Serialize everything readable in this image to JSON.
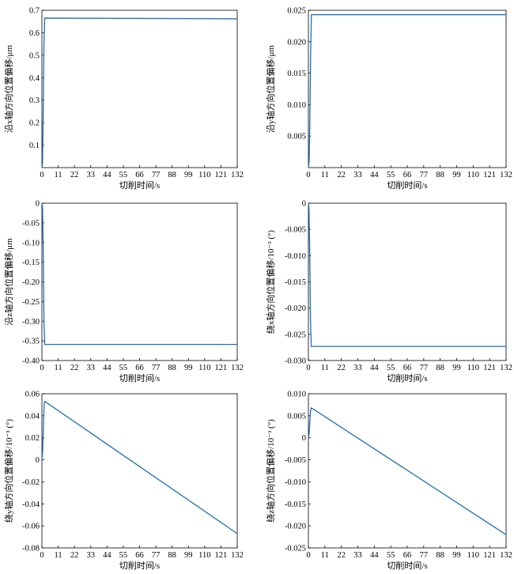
{
  "colors": {
    "line": "#1f6fb2",
    "axes": "#000000",
    "background": "#ffffff"
  },
  "chart_data": [
    {
      "type": "line",
      "xlabel": "切削时间/s",
      "ylabel": "沿x轴方向位置偏移/μm",
      "xlim": [
        0,
        132
      ],
      "ylim": [
        0,
        0.7
      ],
      "xticks": [
        0,
        11,
        22,
        33,
        44,
        55,
        66,
        77,
        88,
        99,
        110,
        121,
        132
      ],
      "yticks": [
        0.1,
        0.2,
        0.3,
        0.4,
        0.5,
        0.6,
        0.7
      ],
      "ytick_labels": [
        "0.1",
        "0.2",
        "0.3",
        "0.4",
        "0.5",
        "0.6",
        "0.7"
      ],
      "grid": false,
      "series": [
        {
          "x": [
            0,
            0.4,
            0.9,
            1.4,
            1.9,
            132
          ],
          "y": [
            0,
            0.02,
            0.25,
            0.55,
            0.665,
            0.662
          ]
        }
      ]
    },
    {
      "type": "line",
      "xlabel": "切削时间/s",
      "ylabel": "沿y轴方向位置偏移/μm",
      "xlim": [
        0,
        132
      ],
      "ylim": [
        0,
        0.025
      ],
      "xticks": [
        0,
        11,
        22,
        33,
        44,
        55,
        66,
        77,
        88,
        99,
        110,
        121,
        132
      ],
      "yticks": [
        0.005,
        0.01,
        0.015,
        0.02,
        0.025
      ],
      "ytick_labels": [
        "0.005",
        "0.010",
        "0.015",
        "0.020",
        "0.025"
      ],
      "grid": false,
      "series": [
        {
          "x": [
            0,
            0.5,
            1.0,
            1.5,
            2.0,
            132
          ],
          "y": [
            0,
            0.001,
            0.008,
            0.018,
            0.0243,
            0.0243
          ]
        }
      ]
    },
    {
      "type": "line",
      "xlabel": "切削时间/s",
      "ylabel": "沿z轴方向位置偏移/μm",
      "xlim": [
        0,
        132
      ],
      "ylim": [
        -0.4,
        0
      ],
      "xticks": [
        0,
        11,
        22,
        33,
        44,
        55,
        66,
        77,
        88,
        99,
        110,
        121,
        132
      ],
      "yticks": [
        -0.4,
        -0.35,
        -0.3,
        -0.25,
        -0.2,
        -0.15,
        -0.1,
        -0.05,
        0
      ],
      "ytick_labels": [
        "-0.40",
        "-0.35",
        "-0.30",
        "-0.25",
        "-0.20",
        "-0.15",
        "-0.10",
        "-0.05",
        "0"
      ],
      "grid": false,
      "series": [
        {
          "x": [
            0,
            0.4,
            0.9,
            1.4,
            1.9,
            132
          ],
          "y": [
            0,
            -0.01,
            -0.12,
            -0.3,
            -0.359,
            -0.359
          ]
        }
      ]
    },
    {
      "type": "line",
      "xlabel": "切削时间/s",
      "ylabel": "绕x轴方向位置偏移/10⁻³ (°)",
      "xlim": [
        0,
        132
      ],
      "ylim": [
        -0.03,
        0
      ],
      "xticks": [
        0,
        11,
        22,
        33,
        44,
        55,
        66,
        77,
        88,
        99,
        110,
        121,
        132
      ],
      "yticks": [
        -0.03,
        -0.025,
        -0.02,
        -0.015,
        -0.01,
        -0.005,
        0
      ],
      "ytick_labels": [
        "-0.030",
        "-0.025",
        "-0.020",
        "-0.015",
        "-0.010",
        "-0.005",
        "0"
      ],
      "grid": false,
      "series": [
        {
          "x": [
            0,
            0.4,
            0.9,
            1.4,
            1.9,
            132
          ],
          "y": [
            0,
            -0.001,
            -0.01,
            -0.022,
            -0.0273,
            -0.0273
          ]
        }
      ]
    },
    {
      "type": "line",
      "xlabel": "切削时间/s",
      "ylabel": "绕y轴方向位置偏移/10⁻³ (°)",
      "xlim": [
        0,
        132
      ],
      "ylim": [
        -0.08,
        0.06
      ],
      "xticks": [
        0,
        11,
        22,
        33,
        44,
        55,
        66,
        77,
        88,
        99,
        110,
        121,
        132
      ],
      "yticks": [
        -0.08,
        -0.06,
        -0.04,
        -0.02,
        0,
        0.02,
        0.04,
        0.06
      ],
      "ytick_labels": [
        "-0.08",
        "-0.06",
        "-0.04",
        "-0.02",
        "0",
        "0.02",
        "0.04",
        "0.06"
      ],
      "grid": false,
      "series": [
        {
          "x": [
            0,
            0.5,
            1.0,
            1.5,
            2.0,
            132
          ],
          "y": [
            0,
            0.008,
            0.03,
            0.05,
            0.053,
            -0.067
          ]
        }
      ]
    },
    {
      "type": "line",
      "xlabel": "切削时间/s",
      "ylabel": "绕z轴方向位置偏移/10⁻³ (°)",
      "xlim": [
        0,
        132
      ],
      "ylim": [
        -0.025,
        0.01
      ],
      "xticks": [
        0,
        11,
        22,
        33,
        44,
        55,
        66,
        77,
        88,
        99,
        110,
        121,
        132
      ],
      "yticks": [
        -0.025,
        -0.02,
        -0.015,
        -0.01,
        -0.005,
        0,
        0.005,
        0.01
      ],
      "ytick_labels": [
        "-0.025",
        "-0.020",
        "-0.015",
        "-0.010",
        "-0.005",
        "0",
        "0.005",
        "0.010"
      ],
      "grid": false,
      "series": [
        {
          "x": [
            0,
            0.5,
            1.0,
            1.5,
            2.0,
            132
          ],
          "y": [
            0,
            0.001,
            0.004,
            0.0063,
            0.0068,
            -0.022
          ]
        }
      ]
    }
  ]
}
